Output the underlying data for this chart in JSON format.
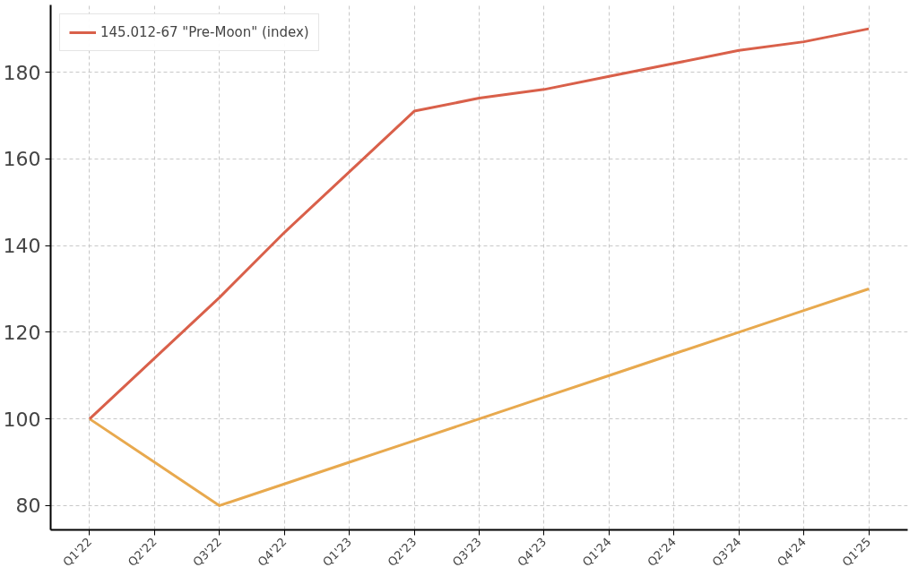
{
  "chart_data": {
    "type": "line",
    "categories": [
      "Q1'22",
      "Q2'22",
      "Q3'22",
      "Q4'22",
      "Q1'23",
      "Q2'23",
      "Q3'23",
      "Q4'23",
      "Q1'24",
      "Q2'24",
      "Q3'24",
      "Q4'24",
      "Q1'25"
    ],
    "series": [
      {
        "color": "#e8a94e",
        "values": [
          100,
          90,
          80,
          85,
          90,
          95,
          100,
          105,
          110,
          115,
          120,
          125,
          130
        ]
      },
      {
        "name": "145.012-67 \"Pre-Moon\" (index)",
        "color": "#d9604a",
        "values": [
          100,
          114,
          128,
          143,
          157,
          171,
          174,
          176,
          179,
          182,
          185,
          187,
          190
        ]
      }
    ],
    "ylim": [
      74.4,
      195.5
    ],
    "yticks": [
      80,
      100,
      120,
      140,
      160,
      180
    ],
    "grid": true,
    "legend": "top left",
    "marker": "none",
    "line_style": "solid"
  }
}
